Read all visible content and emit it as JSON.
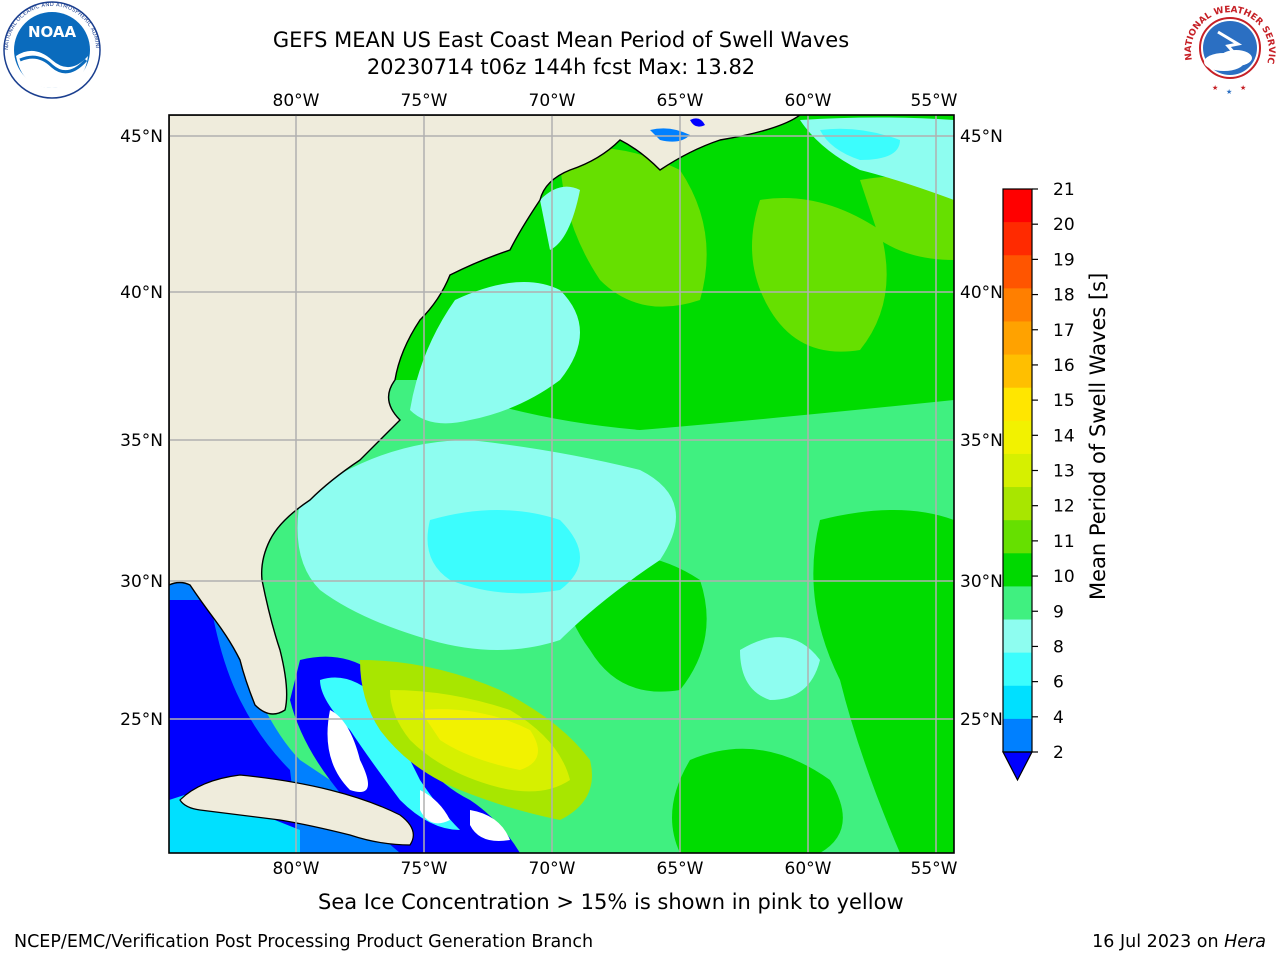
{
  "header": {
    "title_line1": "GEFS MEAN US East Coast Mean Period of Swell Waves",
    "title_line2": "20230714 t06z 144h fcst   Max: 13.82"
  },
  "logos": {
    "left": {
      "icon": "noaa-logo",
      "text": "NOAA",
      "ring_text": "NATIONAL OCEANIC AND ATMOSPHERIC ADMINISTRATION · U.S. DEPARTMENT OF COMMERCE"
    },
    "right": {
      "icon": "nws-logo",
      "ring_text": "NATIONAL WEATHER SERVICE"
    }
  },
  "map": {
    "lon_labels": [
      "80°W",
      "75°W",
      "70°W",
      "65°W",
      "60°W",
      "55°W"
    ],
    "lat_labels": [
      "45°N",
      "40°N",
      "35°N",
      "30°N",
      "25°N"
    ],
    "land_color": "#efecdc",
    "gridline_color": "#b0b0b0"
  },
  "colorbar": {
    "label": "Mean Period of Swell Waves [s]",
    "ticks": [
      "21",
      "20",
      "19",
      "18",
      "17",
      "16",
      "15",
      "14",
      "13",
      "12",
      "11",
      "10",
      "9",
      "8",
      "6",
      "4",
      "2"
    ],
    "colors_top_to_bottom": [
      "#ff0000",
      "#ff2a00",
      "#ff5500",
      "#ff7f00",
      "#ffa200",
      "#ffbf00",
      "#ffe600",
      "#f2f200",
      "#d6f000",
      "#a8e600",
      "#66e000",
      "#00d900",
      "#40f080",
      "#8efdf0",
      "#3cfdfd",
      "#00e0ff",
      "#0080ff"
    ],
    "under_color": "#0000ff"
  },
  "captions": {
    "ice": "Sea Ice Concentration > 15% is shown in pink to yellow",
    "footer_left": "NCEP/EMC/Verification Post Processing Product Generation Branch",
    "footer_date": "16 Jul 2023 on ",
    "footer_system": "Hera"
  }
}
